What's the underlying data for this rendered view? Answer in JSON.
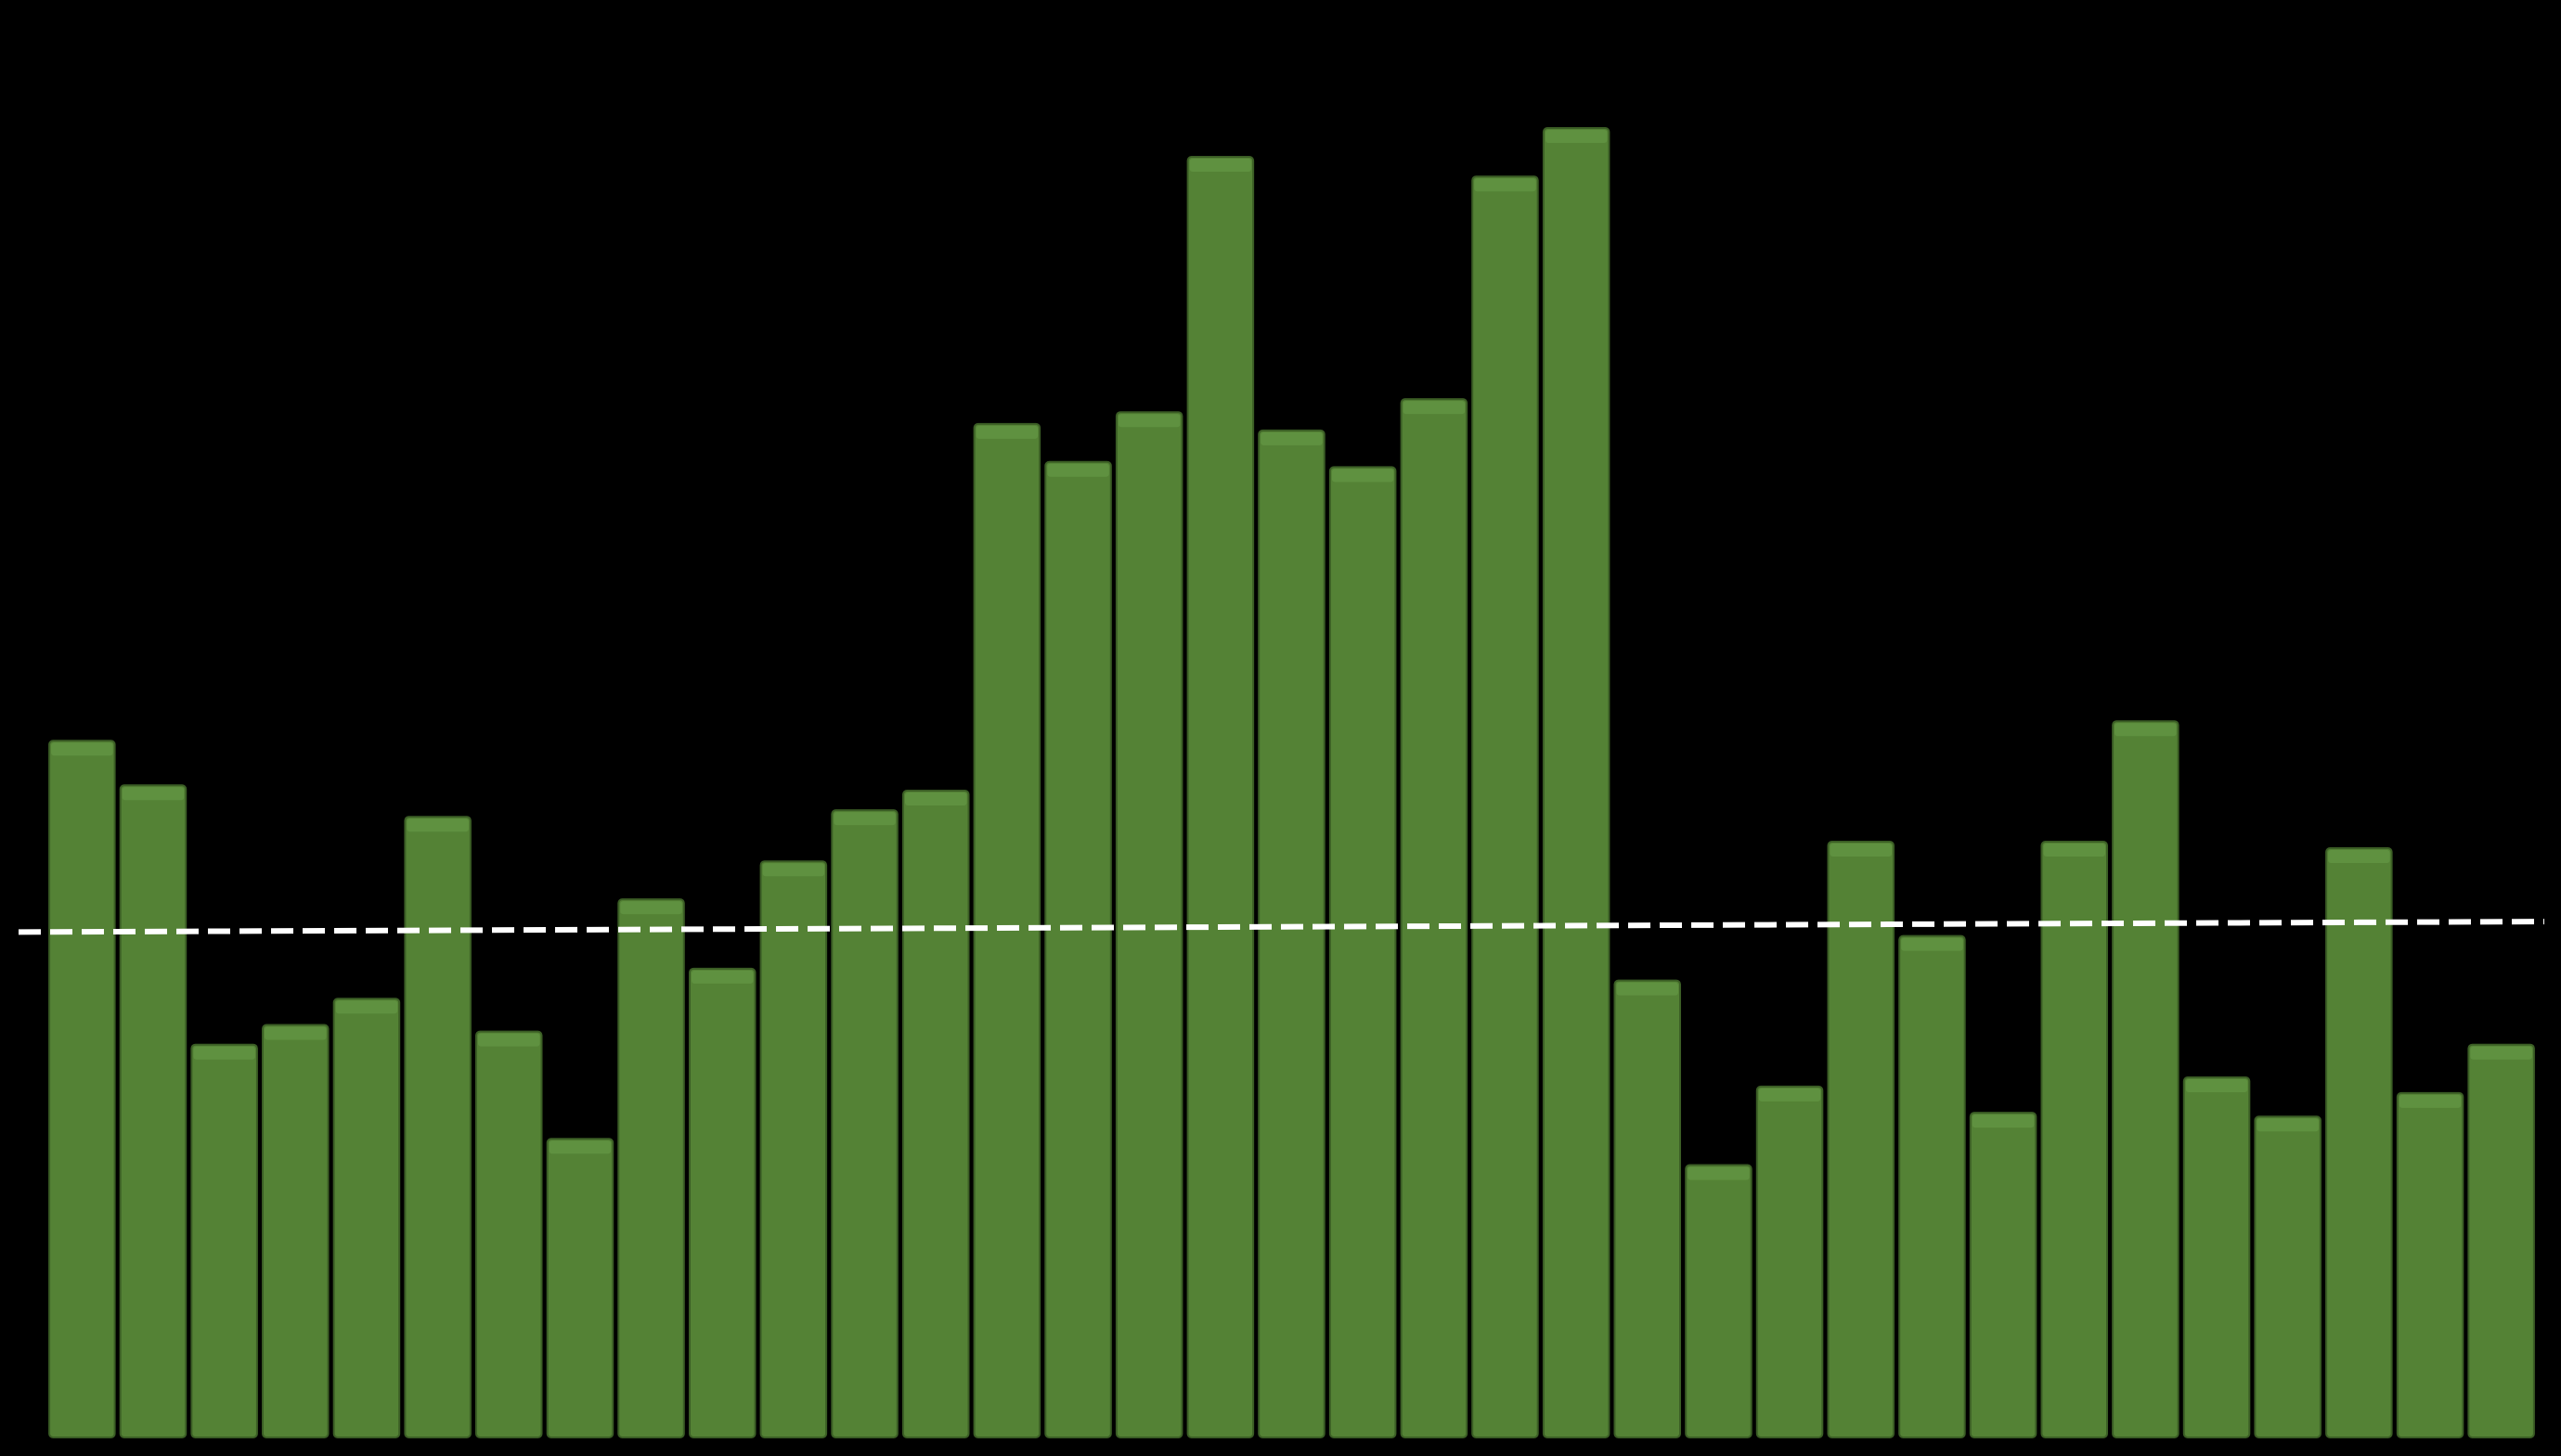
{
  "chart_data": {
    "type": "bar",
    "title": "",
    "xlabel": "",
    "ylabel": "",
    "grid": false,
    "legend": "none",
    "ylim": [
      0,
      100
    ],
    "values": [
      53.2,
      49.8,
      30.0,
      31.5,
      33.5,
      47.4,
      31.0,
      22.8,
      41.1,
      35.8,
      44.0,
      47.9,
      49.4,
      77.4,
      74.5,
      78.3,
      97.8,
      76.9,
      74.1,
      79.3,
      96.3,
      100.0,
      34.9,
      20.8,
      26.8,
      45.5,
      38.3,
      24.8,
      45.5,
      54.7,
      27.5,
      24.5,
      45.0,
      26.3,
      30.0
    ],
    "trendline": {
      "style": "dashed",
      "start": 38.6,
      "end": 39.4
    },
    "colors": {
      "background": "#000000",
      "bar_fill": "#548235",
      "bar_top": "#5f9140",
      "bar_stroke": "#3b5e25",
      "trendline": "#ffffff"
    }
  }
}
